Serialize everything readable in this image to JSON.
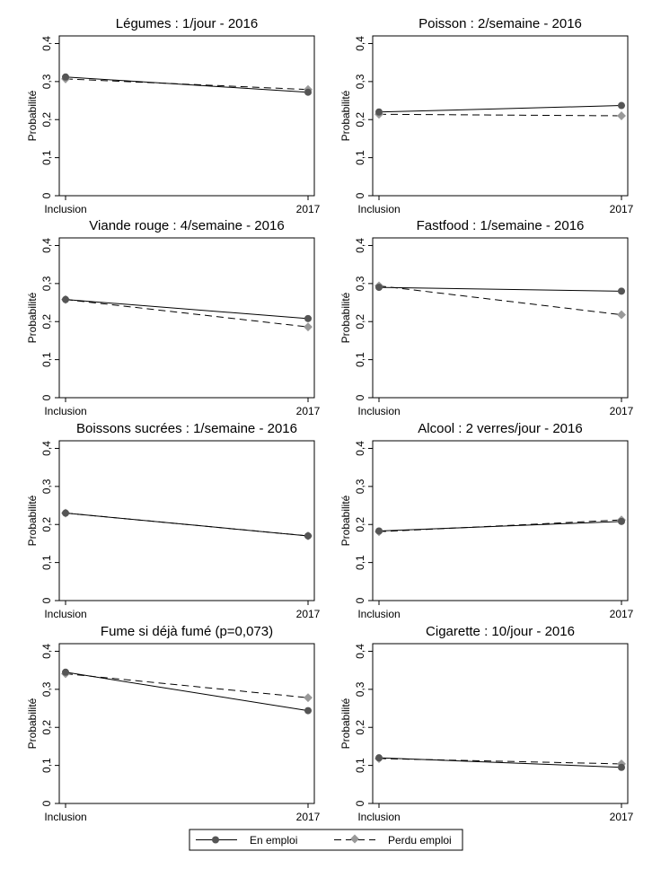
{
  "legend": {
    "series": [
      {
        "name": "En emploi",
        "color": "#555555",
        "dash": "solid",
        "marker": "circle"
      },
      {
        "name": "Perdu emploi",
        "color": "#999999",
        "dash": "dashed",
        "marker": "diamond"
      }
    ]
  },
  "chart_data": [
    {
      "type": "line",
      "title": "Légumes : 1/jour  - 2016",
      "ylabel": "Probabilité",
      "categories": [
        "Inclusion",
        "2017"
      ],
      "ylim": [
        0,
        0.4
      ],
      "yticks": [
        "0",
        "0,1",
        "0,2",
        "0,3",
        "0,4"
      ],
      "series": [
        {
          "name": "En emploi",
          "values": [
            0.312,
            0.272
          ]
        },
        {
          "name": "Perdu emploi",
          "values": [
            0.307,
            0.279
          ]
        }
      ]
    },
    {
      "type": "line",
      "title": "Poisson : 2/semaine - 2016",
      "ylabel": "Probabilité",
      "categories": [
        "Inclusion",
        "2017"
      ],
      "ylim": [
        0,
        0.4
      ],
      "yticks": [
        "0",
        "0,1",
        "0,2",
        "0,3",
        "0,4"
      ],
      "series": [
        {
          "name": "En emploi",
          "values": [
            0.22,
            0.237
          ]
        },
        {
          "name": "Perdu emploi",
          "values": [
            0.214,
            0.21
          ]
        }
      ]
    },
    {
      "type": "line",
      "title": "Viande rouge : 4/semaine - 2016",
      "ylabel": "Probabilité",
      "categories": [
        "Inclusion",
        "2017"
      ],
      "ylim": [
        0,
        0.4
      ],
      "yticks": [
        "0",
        "0,1",
        "0,2",
        "0,3",
        "0,4"
      ],
      "series": [
        {
          "name": "En emploi",
          "values": [
            0.258,
            0.208
          ]
        },
        {
          "name": "Perdu emploi",
          "values": [
            0.258,
            0.186
          ]
        }
      ]
    },
    {
      "type": "line",
      "title": "Fastfood : 1/semaine  - 2016",
      "ylabel": "Probabilité",
      "categories": [
        "Inclusion",
        "2017"
      ],
      "ylim": [
        0,
        0.4
      ],
      "yticks": [
        "0",
        "0,1",
        "0,2",
        "0,3",
        "0,4"
      ],
      "series": [
        {
          "name": "En emploi",
          "values": [
            0.29,
            0.28
          ]
        },
        {
          "name": "Perdu emploi",
          "values": [
            0.294,
            0.218
          ]
        }
      ]
    },
    {
      "type": "line",
      "title": "Boissons sucrées : 1/semaine - 2016",
      "ylabel": "Probabilité",
      "categories": [
        "Inclusion",
        "2017"
      ],
      "ylim": [
        0,
        0.4
      ],
      "yticks": [
        "0",
        "0,1",
        "0,2",
        "0,3",
        "0,4"
      ],
      "series": [
        {
          "name": "En emploi",
          "values": [
            0.23,
            0.17
          ]
        },
        {
          "name": "Perdu emploi",
          "values": [
            0.23,
            0.17
          ]
        }
      ]
    },
    {
      "type": "line",
      "title": "Alcool : 2 verres/jour - 2016",
      "ylabel": "Probabilité",
      "categories": [
        "Inclusion",
        "2017"
      ],
      "ylim": [
        0,
        0.4
      ],
      "yticks": [
        "0",
        "0,1",
        "0,2",
        "0,3",
        "0,4"
      ],
      "series": [
        {
          "name": "En emploi",
          "values": [
            0.183,
            0.208
          ]
        },
        {
          "name": "Perdu emploi",
          "values": [
            0.181,
            0.212
          ]
        }
      ]
    },
    {
      "type": "line",
      "title": "Fume si déjà fumé (p=0,073)",
      "ylabel": "Probabilité",
      "categories": [
        "Inclusion",
        "2017"
      ],
      "ylim": [
        0,
        0.4
      ],
      "yticks": [
        "0",
        "0,1",
        "0,2",
        "0,3",
        "0,4"
      ],
      "series": [
        {
          "name": "En emploi",
          "values": [
            0.345,
            0.244
          ]
        },
        {
          "name": "Perdu emploi",
          "values": [
            0.341,
            0.278
          ]
        }
      ]
    },
    {
      "type": "line",
      "title": "Cigarette : 10/jour  - 2016",
      "ylabel": "Probabilité",
      "categories": [
        "Inclusion",
        "2017"
      ],
      "ylim": [
        0,
        0.4
      ],
      "yticks": [
        "0",
        "0,1",
        "0,2",
        "0,3",
        "0,4"
      ],
      "series": [
        {
          "name": "En emploi",
          "values": [
            0.12,
            0.095
          ]
        },
        {
          "name": "Perdu emploi",
          "values": [
            0.118,
            0.104
          ]
        }
      ]
    }
  ]
}
